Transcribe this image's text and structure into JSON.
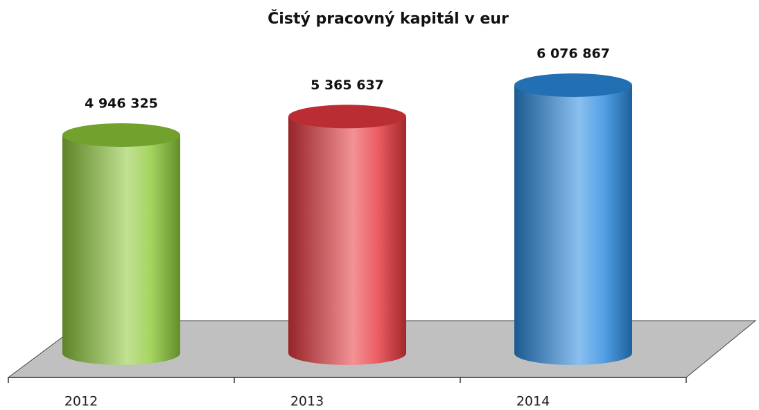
{
  "chart_data": {
    "type": "cylinder",
    "title": "Čistý pracovný kapitál v eur",
    "categories": [
      "2012",
      "2013",
      "2014"
    ],
    "values": [
      4946325,
      5365637,
      6076867
    ],
    "value_labels": [
      "4 946 325",
      "5 365 637",
      "6 076 867"
    ],
    "colors": [
      "#8fc93a",
      "#e8383f",
      "#2a8be0"
    ]
  }
}
